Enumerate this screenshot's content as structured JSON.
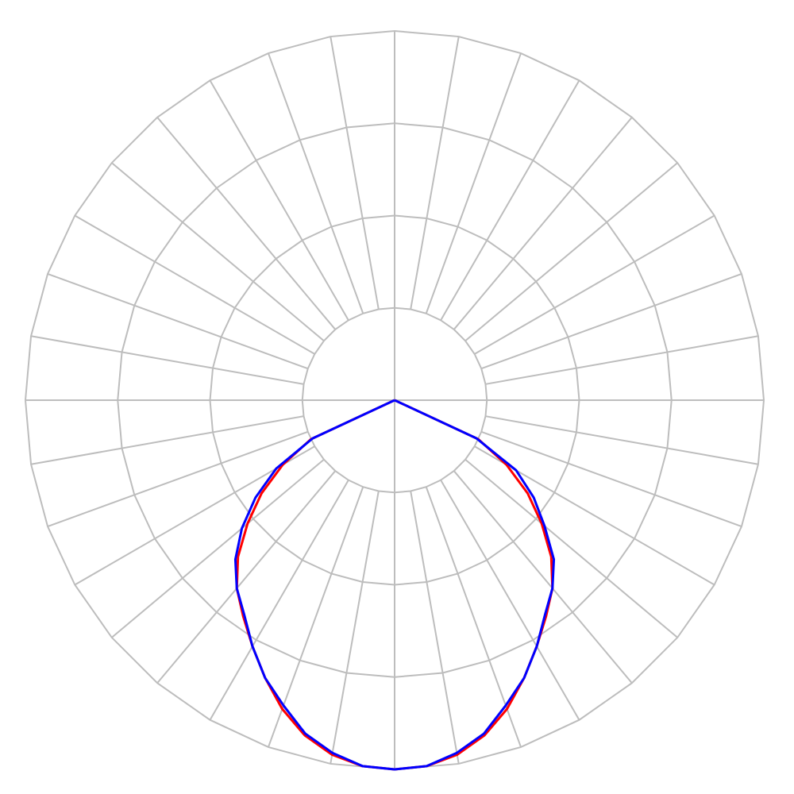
{
  "chart_data": {
    "type": "polar",
    "theta": [
      -90,
      -85,
      -80,
      -75,
      -70,
      -65,
      -60,
      -55,
      -50,
      -45,
      -40,
      -35,
      -30,
      -25,
      -20,
      -15,
      -10,
      -5,
      0,
      5,
      10,
      15,
      20,
      25,
      30,
      35,
      40,
      45,
      50,
      55,
      60,
      65,
      70,
      75,
      80,
      85,
      90
    ],
    "series": [
      {
        "color": "#ff0000",
        "values": [
          0,
          0,
          0,
          0,
          0,
          0.25,
          0.35,
          0.44,
          0.52,
          0.6,
          0.665,
          0.715,
          0.77,
          0.83,
          0.89,
          0.94,
          0.975,
          0.995,
          1.0,
          0.995,
          0.975,
          0.94,
          0.89,
          0.83,
          0.77,
          0.715,
          0.665,
          0.6,
          0.52,
          0.44,
          0.35,
          0.25,
          0,
          0,
          0,
          0,
          0
        ]
      },
      {
        "color": "#0000ff",
        "values": [
          0,
          0,
          0,
          0,
          0,
          0.245,
          0.37,
          0.46,
          0.54,
          0.61,
          0.665,
          0.71,
          0.77,
          0.83,
          0.88,
          0.935,
          0.97,
          0.995,
          1.0,
          0.995,
          0.97,
          0.935,
          0.88,
          0.83,
          0.77,
          0.71,
          0.665,
          0.61,
          0.53,
          0.46,
          0.38,
          0.245,
          0,
          0,
          0,
          0,
          0
        ]
      }
    ],
    "rlim": [
      0,
      1
    ],
    "rticks": [
      0.25,
      0.5,
      0.75,
      1
    ],
    "thetaticks": [
      0,
      10,
      20,
      30,
      40,
      50,
      60,
      70,
      80,
      90,
      100,
      110,
      120,
      130,
      140,
      150,
      160,
      170,
      180,
      190,
      200,
      210,
      220,
      230,
      240,
      250,
      260,
      270,
      280,
      290,
      300,
      310,
      320,
      330,
      340,
      350
    ],
    "grid": true
  }
}
